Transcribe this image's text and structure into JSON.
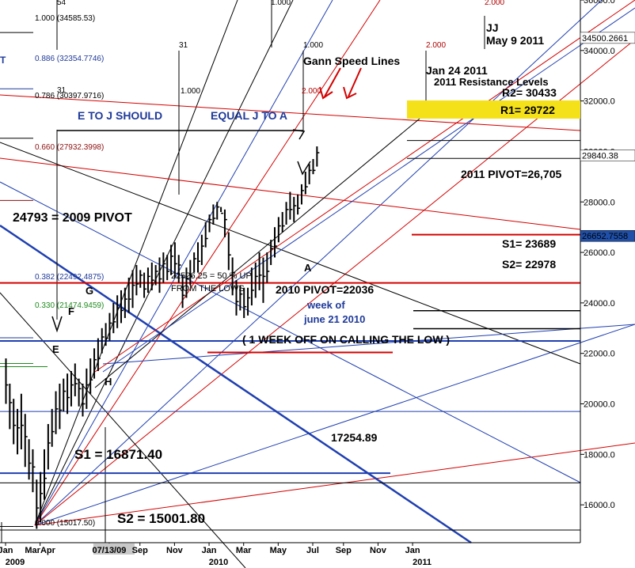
{
  "chart_data": {
    "type": "bar",
    "subtype": "OHLC weekly price bars",
    "yaxis_side": "right",
    "ylim": [
      14500,
      36000
    ],
    "yticks": [
      {
        "value": 36000,
        "label": "36000.0"
      },
      {
        "value": 34000,
        "label": "34000.0"
      },
      {
        "value": 32000,
        "label": "32000.0"
      },
      {
        "value": 30000,
        "label": "30000.0"
      },
      {
        "value": 28000,
        "label": "28000.0"
      },
      {
        "value": 26000,
        "label": "26000.0"
      },
      {
        "value": 24000,
        "label": "24000.0"
      },
      {
        "value": 22000,
        "label": "22000.0"
      },
      {
        "value": 20000,
        "label": "20000.0"
      },
      {
        "value": 18000,
        "label": "18000.0"
      },
      {
        "value": 16000,
        "label": "16000.0"
      }
    ],
    "price_boxes": [
      {
        "value": 34500.2661,
        "label": "34500.2661",
        "color": "#000000",
        "bg": "#ffffff"
      },
      {
        "value": 29840.38,
        "label": "29840.38",
        "color": "#000000",
        "bg": "#ffffff"
      },
      {
        "value": 26652.7558,
        "label": "26652.7558",
        "color": "#ffffff",
        "bg": "#1f4fa8"
      }
    ],
    "x_labels": [
      {
        "t": 0,
        "label": "Jan"
      },
      {
        "t": 9,
        "label": "MarApr"
      },
      {
        "t": 27,
        "label": "07/13/09",
        "highlight": true
      },
      {
        "t": 35,
        "label": "Sep"
      },
      {
        "t": 44,
        "label": "Nov"
      },
      {
        "t": 53,
        "label": "Jan"
      },
      {
        "t": 62,
        "label": "Mar"
      },
      {
        "t": 71,
        "label": "May"
      },
      {
        "t": 80,
        "label": "Jul"
      },
      {
        "t": 88,
        "label": "Sep"
      },
      {
        "t": 97,
        "label": "Nov"
      },
      {
        "t": 106,
        "label": "Jan"
      }
    ],
    "year_labels": [
      {
        "t": 0,
        "label": "2009"
      },
      {
        "t": 53,
        "label": "2010"
      },
      {
        "t": 106,
        "label": "2011"
      }
    ],
    "bars": [
      [
        0,
        20000,
        21800
      ],
      [
        1,
        19000,
        20800
      ],
      [
        2,
        18400,
        20200
      ],
      [
        3,
        18000,
        19800
      ],
      [
        4,
        18200,
        20400
      ],
      [
        5,
        17500,
        19600
      ],
      [
        6,
        17000,
        18600
      ],
      [
        7,
        16500,
        18200
      ],
      [
        8,
        15050,
        17000
      ],
      [
        9,
        15300,
        17300
      ],
      [
        10,
        16200,
        18200
      ],
      [
        11,
        17400,
        19200
      ],
      [
        12,
        18300,
        19800
      ],
      [
        13,
        18800,
        20500
      ],
      [
        14,
        19000,
        20800
      ],
      [
        15,
        19700,
        21000
      ],
      [
        16,
        19600,
        21200
      ],
      [
        17,
        19900,
        21300
      ],
      [
        18,
        20300,
        21600
      ],
      [
        19,
        19900,
        21000
      ],
      [
        20,
        19500,
        20800
      ],
      [
        21,
        19800,
        21400
      ],
      [
        22,
        20400,
        21800
      ],
      [
        23,
        21000,
        22200
      ],
      [
        24,
        21300,
        22600
      ],
      [
        25,
        22000,
        23000
      ],
      [
        26,
        22300,
        23200
      ],
      [
        27,
        22500,
        23600
      ],
      [
        28,
        22800,
        24000
      ],
      [
        29,
        23000,
        24300
      ],
      [
        30,
        23200,
        24500
      ],
      [
        31,
        23400,
        24600
      ],
      [
        32,
        23600,
        25000
      ],
      [
        33,
        23800,
        25300
      ],
      [
        34,
        24300,
        25500
      ],
      [
        35,
        24600,
        25300
      ],
      [
        36,
        24200,
        25200
      ],
      [
        37,
        24400,
        25400
      ],
      [
        38,
        24500,
        25600
      ],
      [
        39,
        24700,
        25500
      ],
      [
        40,
        24400,
        25800
      ],
      [
        41,
        24800,
        26000
      ],
      [
        42,
        24900,
        25900
      ],
      [
        43,
        25100,
        26300
      ],
      [
        44,
        25000,
        26400
      ],
      [
        45,
        24800,
        25900
      ],
      [
        46,
        23800,
        25100
      ],
      [
        47,
        24200,
        25400
      ],
      [
        48,
        24700,
        25700
      ],
      [
        49,
        25200,
        26000
      ],
      [
        50,
        25200,
        26400
      ],
      [
        51,
        25500,
        26700
      ],
      [
        52,
        26200,
        27200
      ],
      [
        53,
        26800,
        27500
      ],
      [
        54,
        27100,
        27900
      ],
      [
        55,
        27300,
        28000
      ],
      [
        56,
        27600,
        27800
      ],
      [
        57,
        26600,
        27700
      ],
      [
        58,
        25300,
        26800
      ],
      [
        59,
        24300,
        25800
      ],
      [
        60,
        23500,
        24900
      ],
      [
        61,
        23700,
        24700
      ],
      [
        62,
        23400,
        24600
      ],
      [
        63,
        23500,
        24600
      ],
      [
        64,
        23900,
        25400
      ],
      [
        65,
        24200,
        25600
      ],
      [
        66,
        24500,
        26000
      ],
      [
        67,
        24000,
        25800
      ],
      [
        68,
        24800,
        26000
      ],
      [
        69,
        25500,
        26500
      ],
      [
        70,
        25800,
        27000
      ],
      [
        71,
        26400,
        27400
      ],
      [
        72,
        26800,
        27600
      ],
      [
        73,
        27100,
        28000
      ],
      [
        74,
        27300,
        28400
      ],
      [
        75,
        27200,
        28200
      ],
      [
        76,
        27500,
        28300
      ],
      [
        77,
        27900,
        28700
      ],
      [
        78,
        28300,
        29200
      ],
      [
        79,
        28700,
        29500
      ],
      [
        80,
        29100,
        29700
      ],
      [
        81,
        29400,
        30200
      ]
    ],
    "levels": [
      {
        "label": "24793 = 2009 PIVOT",
        "value": 24793,
        "color": "#d40000"
      },
      {
        "label": "2011 PIVOT=26,705",
        "value": 26705,
        "color": "#d40000"
      },
      {
        "label": "2010 PIVOT=22036",
        "value": 22036,
        "color": "#d40000"
      },
      {
        "label": "S1= 23689",
        "value": 23689,
        "color": "#000000"
      },
      {
        "label": "S2= 22978",
        "value": 22978,
        "color": "#000000"
      },
      {
        "label": "R1= 29722",
        "value": 29722,
        "color": "#000000"
      },
      {
        "label": "R2= 30433",
        "value": 30433,
        "color": "#000000"
      },
      {
        "label": "17254.89",
        "value": 17254.89,
        "color": "#1f4fa8"
      },
      {
        "label": "S1 = 16871.40",
        "value": 16871.4,
        "color": "#000000"
      },
      {
        "label": "S2 = 15001.80",
        "value": 15001.8,
        "color": "#000000"
      }
    ],
    "fib_labels": [
      {
        "label": "1.000 (34585.53)",
        "value": 34585.53,
        "color": "#000000"
      },
      {
        "label": "0.886 (32354.7746)",
        "value": 32354.7746,
        "color": "#1f3a9a"
      },
      {
        "label": "0.786 (30397.9716)",
        "value": 30397.9716,
        "color": "#000000"
      },
      {
        "label": "0.660 (27932.3998)",
        "value": 27932.3998,
        "color": "#8b1010"
      },
      {
        "label": "0.382 (22492.4875)",
        "value": 22492.4875,
        "color": "#1f3a9a"
      },
      {
        "label": "0.330 (21474.9459)",
        "value": 21474.9459,
        "color": "#1e8a1e"
      },
      {
        "label": "0.000 (15017.50)",
        "value": 15017.5,
        "color": "#000000"
      }
    ],
    "gann_labels": [
      {
        "label": "1.000",
        "color": "#000000"
      },
      {
        "label": "2.000",
        "color": "#b00000"
      },
      {
        "label": "1.000",
        "color": "#000000"
      },
      {
        "label": "2.000",
        "color": "#b00000"
      },
      {
        "label": "2.000",
        "color": "#b00000"
      },
      {
        "label": "1.000",
        "color": "#000000"
      }
    ],
    "annotations": [
      {
        "text": "Gann Speed Lines",
        "color": "#000000"
      },
      {
        "text": "E TO J SHOULD",
        "color": "#1f3a9a"
      },
      {
        "text": "EQUAL J TO A",
        "color": "#1f3a9a"
      },
      {
        "text": "Jan 24 2011",
        "color": "#000000"
      },
      {
        "text": "2011 Resistance Levels",
        "color": "#000000"
      },
      {
        "text": "JJ",
        "color": "#000000"
      },
      {
        "text": "May 9 2011",
        "color": "#000000"
      },
      {
        "text": "22526.25 = 50 % UP",
        "color": "#000000"
      },
      {
        "text": "FROM THE LOWS",
        "color": "#000000"
      },
      {
        "text": "week of",
        "color": "#1f3a9a"
      },
      {
        "text": "june 21  2010",
        "color": "#1f3a9a"
      },
      {
        "text": "( 1 WEEK OFF ON CALLING THE LOW )",
        "color": "#000000"
      }
    ],
    "wave_labels": [
      "E",
      "F",
      "G",
      "H",
      "A"
    ],
    "bar_numbers": [
      "54",
      "31",
      "31"
    ],
    "left_marker": "T"
  }
}
